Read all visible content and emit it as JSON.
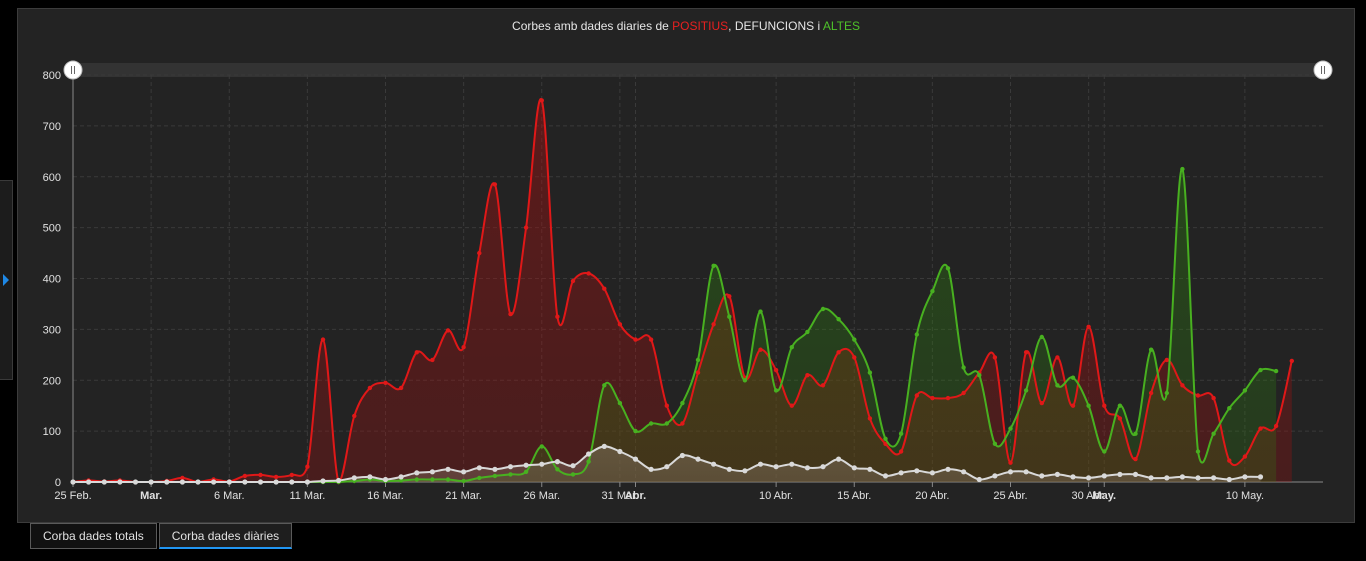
{
  "title": {
    "prefix": "Corbes amb dades diaries de ",
    "positius": "POSITIUS",
    "sep1": ", ",
    "defuncions": "DEFUNCIONS",
    "sep2": " i ",
    "altes": "ALTES"
  },
  "tabs": [
    {
      "label": "Corba dades totals",
      "active": false
    },
    {
      "label": "Corba dades diàries",
      "active": true
    }
  ],
  "colors": {
    "positius": "#e01818",
    "altes": "#48b020",
    "defuncions": "#d9d9d9",
    "background": "#232323",
    "grid": "#3a3a3a"
  },
  "chart_data": {
    "type": "area",
    "ylim": [
      0,
      800
    ],
    "yticks": [
      0,
      100,
      200,
      300,
      400,
      500,
      600,
      700,
      800
    ],
    "xlim": [
      "2020-02-25",
      "2020-05-15"
    ],
    "xticks": [
      {
        "date": "2020-02-25",
        "label": "25 Feb.",
        "bold": false
      },
      {
        "date": "2020-03-01",
        "label": "Mar.",
        "bold": true
      },
      {
        "date": "2020-03-06",
        "label": "6 Mar.",
        "bold": false
      },
      {
        "date": "2020-03-11",
        "label": "11 Mar.",
        "bold": false
      },
      {
        "date": "2020-03-16",
        "label": "16 Mar.",
        "bold": false
      },
      {
        "date": "2020-03-21",
        "label": "21 Mar.",
        "bold": false
      },
      {
        "date": "2020-03-26",
        "label": "26 Mar.",
        "bold": false
      },
      {
        "date": "2020-03-31",
        "label": "31 Mar.",
        "bold": false
      },
      {
        "date": "2020-04-01",
        "label": "Abr.",
        "bold": true
      },
      {
        "date": "2020-04-10",
        "label": "10 Abr.",
        "bold": false
      },
      {
        "date": "2020-04-15",
        "label": "15 Abr.",
        "bold": false
      },
      {
        "date": "2020-04-20",
        "label": "20 Abr.",
        "bold": false
      },
      {
        "date": "2020-04-25",
        "label": "25 Abr.",
        "bold": false
      },
      {
        "date": "2020-04-30",
        "label": "30 Abr.",
        "bold": false
      },
      {
        "date": "2020-05-01",
        "label": "May.",
        "bold": true
      },
      {
        "date": "2020-05-10",
        "label": "10 May.",
        "bold": false
      }
    ],
    "grid": true,
    "start_date": "2020-02-25",
    "series": [
      {
        "name": "POSITIUS",
        "key": "positius",
        "values": [
          0,
          3,
          1,
          3,
          0,
          0,
          2,
          8,
          0,
          5,
          1,
          12,
          14,
          10,
          14,
          30,
          280,
          0,
          130,
          185,
          195,
          185,
          255,
          240,
          298,
          265,
          450,
          585,
          330,
          500,
          750,
          325,
          395,
          410,
          380,
          310,
          280,
          280,
          150,
          115,
          215,
          310,
          365,
          205,
          260,
          220,
          150,
          210,
          190,
          255,
          245,
          125,
          75,
          60,
          170,
          165,
          165,
          175,
          215,
          245,
          38,
          255,
          155,
          245,
          150,
          305,
          150,
          125,
          45,
          175,
          240,
          190,
          170,
          165,
          42,
          50,
          105,
          110,
          238
        ]
      },
      {
        "name": "ALTES",
        "key": "altes",
        "values": [
          0,
          0,
          0,
          0,
          0,
          0,
          0,
          0,
          0,
          0,
          0,
          0,
          0,
          0,
          0,
          0,
          0,
          0,
          2,
          5,
          2,
          3,
          5,
          5,
          5,
          2,
          8,
          12,
          15,
          20,
          70,
          25,
          15,
          40,
          190,
          155,
          100,
          115,
          115,
          155,
          240,
          425,
          325,
          200,
          335,
          180,
          265,
          295,
          340,
          320,
          280,
          215,
          85,
          95,
          290,
          375,
          420,
          225,
          210,
          75,
          105,
          180,
          285,
          190,
          205,
          150,
          60,
          150,
          95,
          260,
          175,
          615,
          60,
          95,
          145,
          180,
          220,
          218
        ]
      },
      {
        "name": "DEFUNCIONS",
        "key": "defuncions",
        "values": [
          0,
          0,
          0,
          0,
          0,
          0,
          0,
          0,
          0,
          0,
          0,
          0,
          0,
          0,
          0,
          0,
          2,
          3,
          8,
          10,
          5,
          10,
          18,
          20,
          25,
          20,
          28,
          25,
          30,
          33,
          35,
          40,
          32,
          55,
          70,
          60,
          45,
          25,
          30,
          52,
          45,
          35,
          25,
          22,
          35,
          30,
          35,
          28,
          30,
          45,
          28,
          25,
          12,
          18,
          22,
          18,
          25,
          20,
          5,
          12,
          20,
          20,
          12,
          15,
          10,
          8,
          12,
          15,
          15,
          8,
          8,
          10,
          8,
          8,
          5,
          10,
          10
        ]
      }
    ]
  }
}
